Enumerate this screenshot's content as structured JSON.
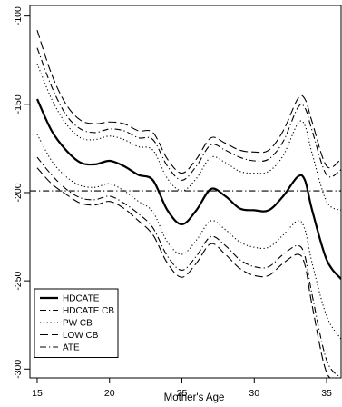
{
  "chart_data": {
    "type": "line",
    "title": "",
    "xlabel": "Mother's Age",
    "ylabel": "",
    "xlim": [
      14.5,
      36
    ],
    "ylim": [
      -305,
      -94
    ],
    "x_ticks": [
      15,
      20,
      25,
      30,
      35
    ],
    "x_tick_labels": [
      "15",
      "20",
      "25",
      "30",
      "35"
    ],
    "y_ticks": [
      -100,
      -150,
      -200,
      -250,
      -300
    ],
    "y_tick_labels": [
      "-100",
      "-150",
      "-200",
      "-250",
      "-300"
    ],
    "grid": false,
    "legend_position": "bottom-left",
    "series": [
      {
        "name": "HDCATE",
        "style": "solid",
        "x": [
          15,
          16,
          17,
          18,
          19,
          20,
          21,
          22,
          23,
          24,
          25,
          26,
          27,
          28,
          29,
          30,
          31,
          32,
          33,
          33.5,
          34,
          35,
          36
        ],
        "y": [
          -147,
          -165,
          -176,
          -183,
          -184,
          -182,
          -185,
          -190,
          -193,
          -210,
          -218,
          -210,
          -198,
          -202,
          -209,
          -210,
          -210,
          -202,
          -191,
          -193,
          -210,
          -238,
          -249
        ]
      },
      {
        "name": "HDCATE CB",
        "style": "dotdash",
        "x": [
          15,
          16,
          17,
          18,
          19,
          20,
          21,
          22,
          23,
          24,
          25,
          26,
          27,
          28,
          29,
          30,
          31,
          32,
          33,
          33.5,
          34,
          35,
          36
        ],
        "y": [
          -118,
          -140,
          -156,
          -164,
          -166,
          -164,
          -165,
          -169,
          -170,
          -185,
          -193,
          -185,
          -173,
          -176,
          -180,
          -182,
          -181,
          -171,
          -152,
          -152,
          -165,
          -190,
          -187
        ]
      },
      {
        "name": "HDCATE CB",
        "style": "dotdash",
        "x": [
          15,
          16,
          17,
          18,
          19,
          20,
          21,
          22,
          23,
          24,
          25,
          26,
          27,
          28,
          29,
          30,
          31,
          32,
          33,
          33.5,
          34,
          35,
          36
        ],
        "y": [
          -180,
          -190,
          -198,
          -203,
          -204,
          -202,
          -206,
          -212,
          -220,
          -236,
          -244,
          -236,
          -225,
          -230,
          -238,
          -242,
          -242,
          -235,
          -230,
          -236,
          -258,
          -295,
          -305
        ]
      },
      {
        "name": "PW CB",
        "style": "dotted",
        "x": [
          15,
          16,
          17,
          18,
          19,
          20,
          21,
          22,
          23,
          24,
          25,
          26,
          27,
          28,
          29,
          30,
          31,
          32,
          33,
          33.5,
          34,
          35,
          36
        ],
        "y": [
          -127,
          -147,
          -161,
          -169,
          -170,
          -168,
          -170,
          -174,
          -176,
          -192,
          -199,
          -192,
          -180,
          -183,
          -188,
          -189,
          -188,
          -179,
          -161,
          -162,
          -178,
          -205,
          -210
        ]
      },
      {
        "name": "PW CB",
        "style": "dotted",
        "x": [
          15,
          16,
          17,
          18,
          19,
          20,
          21,
          22,
          23,
          24,
          25,
          26,
          27,
          28,
          29,
          30,
          31,
          32,
          33,
          33.5,
          34,
          35,
          36
        ],
        "y": [
          -167,
          -182,
          -191,
          -196,
          -197,
          -195,
          -199,
          -205,
          -211,
          -228,
          -235,
          -227,
          -216,
          -221,
          -228,
          -231,
          -231,
          -224,
          -216,
          -221,
          -240,
          -270,
          -283
        ]
      },
      {
        "name": "LOW CB",
        "style": "dashed",
        "x": [
          15,
          16,
          17,
          18,
          19,
          20,
          21,
          22,
          23,
          24,
          25,
          26,
          27,
          28,
          29,
          30,
          31,
          32,
          33,
          33.5,
          34,
          35,
          36
        ],
        "y": [
          -108,
          -133,
          -150,
          -159,
          -161,
          -160,
          -161,
          -165,
          -166,
          -181,
          -189,
          -181,
          -169,
          -172,
          -176,
          -177,
          -176,
          -165,
          -147,
          -147,
          -160,
          -185,
          -181
        ]
      },
      {
        "name": "LOW CB",
        "style": "dashed",
        "x": [
          15,
          16,
          17,
          18,
          19,
          20,
          21,
          22,
          23,
          24,
          25,
          26,
          27,
          28,
          29,
          30,
          31,
          32,
          33,
          33.5,
          34,
          35,
          36
        ],
        "y": [
          -186,
          -195,
          -201,
          -206,
          -207,
          -205,
          -209,
          -216,
          -224,
          -240,
          -248,
          -240,
          -229,
          -235,
          -243,
          -247,
          -247,
          -240,
          -235,
          -241,
          -264,
          -302,
          -305
        ]
      },
      {
        "name": "ATE",
        "style": "dotdash",
        "x": [
          14.5,
          36
        ],
        "y": [
          -199,
          -199
        ]
      }
    ],
    "legend": [
      {
        "label": "HDCATE",
        "style": "solid"
      },
      {
        "label": "HDCATE CB",
        "style": "dotdash"
      },
      {
        "label": "PW CB",
        "style": "dotted"
      },
      {
        "label": "LOW CB",
        "style": "dashed"
      },
      {
        "label": "ATE",
        "style": "dotdash"
      }
    ]
  }
}
